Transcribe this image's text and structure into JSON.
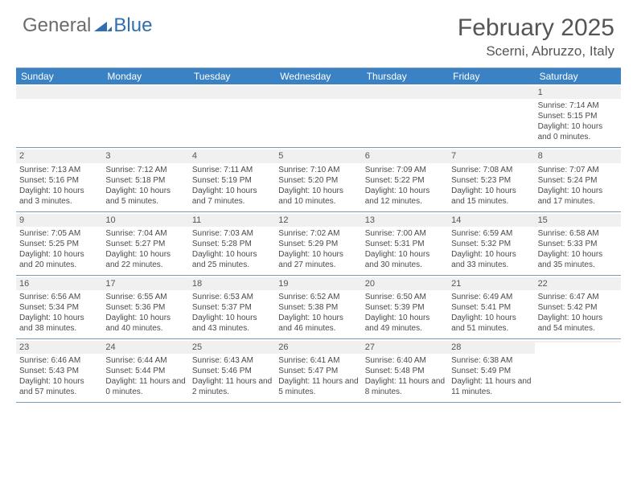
{
  "logo": {
    "text_general": "General",
    "text_blue": "Blue"
  },
  "header": {
    "month_title": "February 2025",
    "location": "Scerni, Abruzzo, Italy"
  },
  "colors": {
    "header_bg": "#3b82c4",
    "header_text": "#ffffff",
    "grid_border": "#7a9abb",
    "strip_bg": "#f0f0f0",
    "body_text": "#4a4a4a",
    "logo_gray": "#6b6b6b",
    "logo_blue": "#2f6fb0"
  },
  "weekdays": [
    "Sunday",
    "Monday",
    "Tuesday",
    "Wednesday",
    "Thursday",
    "Friday",
    "Saturday"
  ],
  "weeks": [
    [
      null,
      null,
      null,
      null,
      null,
      null,
      {
        "n": "1",
        "sunrise": "Sunrise: 7:14 AM",
        "sunset": "Sunset: 5:15 PM",
        "daylight": "Daylight: 10 hours and 0 minutes."
      }
    ],
    [
      {
        "n": "2",
        "sunrise": "Sunrise: 7:13 AM",
        "sunset": "Sunset: 5:16 PM",
        "daylight": "Daylight: 10 hours and 3 minutes."
      },
      {
        "n": "3",
        "sunrise": "Sunrise: 7:12 AM",
        "sunset": "Sunset: 5:18 PM",
        "daylight": "Daylight: 10 hours and 5 minutes."
      },
      {
        "n": "4",
        "sunrise": "Sunrise: 7:11 AM",
        "sunset": "Sunset: 5:19 PM",
        "daylight": "Daylight: 10 hours and 7 minutes."
      },
      {
        "n": "5",
        "sunrise": "Sunrise: 7:10 AM",
        "sunset": "Sunset: 5:20 PM",
        "daylight": "Daylight: 10 hours and 10 minutes."
      },
      {
        "n": "6",
        "sunrise": "Sunrise: 7:09 AM",
        "sunset": "Sunset: 5:22 PM",
        "daylight": "Daylight: 10 hours and 12 minutes."
      },
      {
        "n": "7",
        "sunrise": "Sunrise: 7:08 AM",
        "sunset": "Sunset: 5:23 PM",
        "daylight": "Daylight: 10 hours and 15 minutes."
      },
      {
        "n": "8",
        "sunrise": "Sunrise: 7:07 AM",
        "sunset": "Sunset: 5:24 PM",
        "daylight": "Daylight: 10 hours and 17 minutes."
      }
    ],
    [
      {
        "n": "9",
        "sunrise": "Sunrise: 7:05 AM",
        "sunset": "Sunset: 5:25 PM",
        "daylight": "Daylight: 10 hours and 20 minutes."
      },
      {
        "n": "10",
        "sunrise": "Sunrise: 7:04 AM",
        "sunset": "Sunset: 5:27 PM",
        "daylight": "Daylight: 10 hours and 22 minutes."
      },
      {
        "n": "11",
        "sunrise": "Sunrise: 7:03 AM",
        "sunset": "Sunset: 5:28 PM",
        "daylight": "Daylight: 10 hours and 25 minutes."
      },
      {
        "n": "12",
        "sunrise": "Sunrise: 7:02 AM",
        "sunset": "Sunset: 5:29 PM",
        "daylight": "Daylight: 10 hours and 27 minutes."
      },
      {
        "n": "13",
        "sunrise": "Sunrise: 7:00 AM",
        "sunset": "Sunset: 5:31 PM",
        "daylight": "Daylight: 10 hours and 30 minutes."
      },
      {
        "n": "14",
        "sunrise": "Sunrise: 6:59 AM",
        "sunset": "Sunset: 5:32 PM",
        "daylight": "Daylight: 10 hours and 33 minutes."
      },
      {
        "n": "15",
        "sunrise": "Sunrise: 6:58 AM",
        "sunset": "Sunset: 5:33 PM",
        "daylight": "Daylight: 10 hours and 35 minutes."
      }
    ],
    [
      {
        "n": "16",
        "sunrise": "Sunrise: 6:56 AM",
        "sunset": "Sunset: 5:34 PM",
        "daylight": "Daylight: 10 hours and 38 minutes."
      },
      {
        "n": "17",
        "sunrise": "Sunrise: 6:55 AM",
        "sunset": "Sunset: 5:36 PM",
        "daylight": "Daylight: 10 hours and 40 minutes."
      },
      {
        "n": "18",
        "sunrise": "Sunrise: 6:53 AM",
        "sunset": "Sunset: 5:37 PM",
        "daylight": "Daylight: 10 hours and 43 minutes."
      },
      {
        "n": "19",
        "sunrise": "Sunrise: 6:52 AM",
        "sunset": "Sunset: 5:38 PM",
        "daylight": "Daylight: 10 hours and 46 minutes."
      },
      {
        "n": "20",
        "sunrise": "Sunrise: 6:50 AM",
        "sunset": "Sunset: 5:39 PM",
        "daylight": "Daylight: 10 hours and 49 minutes."
      },
      {
        "n": "21",
        "sunrise": "Sunrise: 6:49 AM",
        "sunset": "Sunset: 5:41 PM",
        "daylight": "Daylight: 10 hours and 51 minutes."
      },
      {
        "n": "22",
        "sunrise": "Sunrise: 6:47 AM",
        "sunset": "Sunset: 5:42 PM",
        "daylight": "Daylight: 10 hours and 54 minutes."
      }
    ],
    [
      {
        "n": "23",
        "sunrise": "Sunrise: 6:46 AM",
        "sunset": "Sunset: 5:43 PM",
        "daylight": "Daylight: 10 hours and 57 minutes."
      },
      {
        "n": "24",
        "sunrise": "Sunrise: 6:44 AM",
        "sunset": "Sunset: 5:44 PM",
        "daylight": "Daylight: 11 hours and 0 minutes."
      },
      {
        "n": "25",
        "sunrise": "Sunrise: 6:43 AM",
        "sunset": "Sunset: 5:46 PM",
        "daylight": "Daylight: 11 hours and 2 minutes."
      },
      {
        "n": "26",
        "sunrise": "Sunrise: 6:41 AM",
        "sunset": "Sunset: 5:47 PM",
        "daylight": "Daylight: 11 hours and 5 minutes."
      },
      {
        "n": "27",
        "sunrise": "Sunrise: 6:40 AM",
        "sunset": "Sunset: 5:48 PM",
        "daylight": "Daylight: 11 hours and 8 minutes."
      },
      {
        "n": "28",
        "sunrise": "Sunrise: 6:38 AM",
        "sunset": "Sunset: 5:49 PM",
        "daylight": "Daylight: 11 hours and 11 minutes."
      },
      null
    ]
  ]
}
